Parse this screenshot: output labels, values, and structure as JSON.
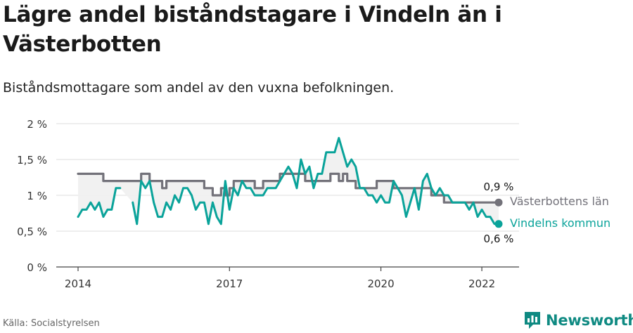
{
  "title": "Lägre andel biståndstagare i Vindeln än i Västerbotten",
  "subtitle": "Biståndsmottagare som andel av den vuxna befolkningen.",
  "source": "Källa: Socialstyrelsen",
  "brand": "Newsworthy",
  "colors": {
    "vasterbotten": "#73727a",
    "vindeln": "#0aa39a",
    "brand": "#0f8a82",
    "grid": "#dcdcdc",
    "axis": "#444444",
    "fill": "#efefef"
  },
  "chart_data": {
    "type": "line",
    "x_tick_labels": [
      "2014",
      "2017",
      "2020",
      "2022"
    ],
    "y_ticks": [
      0,
      0.5,
      1,
      1.5,
      2
    ],
    "y_tick_labels": [
      "0 %",
      "0,5 %",
      "1 %",
      "1,5 %",
      "2 %"
    ],
    "ylim": [
      0,
      2
    ],
    "xlim": [
      "2014-01",
      "2022-05"
    ],
    "ylabel": "",
    "xlabel": "",
    "grid": true,
    "series": [
      {
        "name": "Västerbottens län",
        "end_label": "0,9 %",
        "color": "#73727a",
        "values": [
          {
            "x": "2014-01",
            "y": 1.3
          },
          {
            "x": "2014-06",
            "y": 1.3
          },
          {
            "x": "2014-07",
            "y": 1.2
          },
          {
            "x": "2015-03",
            "y": 1.2
          },
          {
            "x": "2015-04",
            "y": 1.3
          },
          {
            "x": "2015-05",
            "y": 1.3
          },
          {
            "x": "2015-06",
            "y": 1.2
          },
          {
            "x": "2015-07",
            "y": 1.2
          },
          {
            "x": "2015-08",
            "y": 1.2
          },
          {
            "x": "2015-09",
            "y": 1.1
          },
          {
            "x": "2015-10",
            "y": 1.2
          },
          {
            "x": "2016-06",
            "y": 1.2
          },
          {
            "x": "2016-07",
            "y": 1.1
          },
          {
            "x": "2016-08",
            "y": 1.1
          },
          {
            "x": "2016-09",
            "y": 1.0
          },
          {
            "x": "2016-10",
            "y": 1.0
          },
          {
            "x": "2016-11",
            "y": 1.1
          },
          {
            "x": "2016-12",
            "y": 1.0
          },
          {
            "x": "2017-01",
            "y": 1.1
          },
          {
            "x": "2017-02",
            "y": 1.2
          },
          {
            "x": "2017-06",
            "y": 1.2
          },
          {
            "x": "2017-07",
            "y": 1.1
          },
          {
            "x": "2017-08",
            "y": 1.1
          },
          {
            "x": "2017-09",
            "y": 1.2
          },
          {
            "x": "2017-12",
            "y": 1.2
          },
          {
            "x": "2018-01",
            "y": 1.3
          },
          {
            "x": "2018-06",
            "y": 1.3
          },
          {
            "x": "2018-07",
            "y": 1.2
          },
          {
            "x": "2018-12",
            "y": 1.2
          },
          {
            "x": "2019-01",
            "y": 1.3
          },
          {
            "x": "2019-02",
            "y": 1.3
          },
          {
            "x": "2019-03",
            "y": 1.2
          },
          {
            "x": "2019-04",
            "y": 1.3
          },
          {
            "x": "2019-05",
            "y": 1.2
          },
          {
            "x": "2019-06",
            "y": 1.2
          },
          {
            "x": "2019-07",
            "y": 1.1
          },
          {
            "x": "2019-11",
            "y": 1.1
          },
          {
            "x": "2019-12",
            "y": 1.2
          },
          {
            "x": "2020-03",
            "y": 1.2
          },
          {
            "x": "2020-04",
            "y": 1.1
          },
          {
            "x": "2020-12",
            "y": 1.1
          },
          {
            "x": "2021-01",
            "y": 1.0
          },
          {
            "x": "2021-02",
            "y": 1.0
          },
          {
            "x": "2021-03",
            "y": 1.0
          },
          {
            "x": "2021-04",
            "y": 0.9
          },
          {
            "x": "2022-05",
            "y": 0.9
          }
        ]
      },
      {
        "name": "Vindelns kommun",
        "end_label": "0,6 %",
        "color": "#0aa39a",
        "values": [
          {
            "x": "2014-01",
            "y": 0.7
          },
          {
            "x": "2014-02",
            "y": 0.8
          },
          {
            "x": "2014-03",
            "y": 0.8
          },
          {
            "x": "2014-04",
            "y": 0.9
          },
          {
            "x": "2014-05",
            "y": 0.8
          },
          {
            "x": "2014-06",
            "y": 0.9
          },
          {
            "x": "2014-07",
            "y": 0.7
          },
          {
            "x": "2014-08",
            "y": 0.8
          },
          {
            "x": "2014-09",
            "y": 0.8
          },
          {
            "x": "2014-10",
            "y": 1.1
          },
          {
            "x": "2014-11",
            "y": 1.1
          },
          {
            "x": "2015-02",
            "y": 0.9,
            "gap_before": true
          },
          {
            "x": "2015-03",
            "y": 0.6
          },
          {
            "x": "2015-04",
            "y": 1.2
          },
          {
            "x": "2015-05",
            "y": 1.1
          },
          {
            "x": "2015-06",
            "y": 1.2
          },
          {
            "x": "2015-07",
            "y": 0.9
          },
          {
            "x": "2015-08",
            "y": 0.7
          },
          {
            "x": "2015-09",
            "y": 0.7
          },
          {
            "x": "2015-10",
            "y": 0.9
          },
          {
            "x": "2015-11",
            "y": 0.8
          },
          {
            "x": "2015-12",
            "y": 1.0
          },
          {
            "x": "2016-01",
            "y": 0.9
          },
          {
            "x": "2016-02",
            "y": 1.1
          },
          {
            "x": "2016-03",
            "y": 1.1
          },
          {
            "x": "2016-04",
            "y": 1.0
          },
          {
            "x": "2016-05",
            "y": 0.8
          },
          {
            "x": "2016-06",
            "y": 0.9
          },
          {
            "x": "2016-07",
            "y": 0.9
          },
          {
            "x": "2016-08",
            "y": 0.6
          },
          {
            "x": "2016-09",
            "y": 0.9
          },
          {
            "x": "2016-10",
            "y": 0.7
          },
          {
            "x": "2016-11",
            "y": 0.6
          },
          {
            "x": "2016-12",
            "y": 1.2
          },
          {
            "x": "2017-01",
            "y": 0.8
          },
          {
            "x": "2017-02",
            "y": 1.1
          },
          {
            "x": "2017-03",
            "y": 1.0
          },
          {
            "x": "2017-04",
            "y": 1.2
          },
          {
            "x": "2017-05",
            "y": 1.1
          },
          {
            "x": "2017-06",
            "y": 1.1
          },
          {
            "x": "2017-07",
            "y": 1.0
          },
          {
            "x": "2017-08",
            "y": 1.0
          },
          {
            "x": "2017-09",
            "y": 1.0
          },
          {
            "x": "2017-10",
            "y": 1.1
          },
          {
            "x": "2017-11",
            "y": 1.1
          },
          {
            "x": "2017-12",
            "y": 1.1
          },
          {
            "x": "2018-01",
            "y": 1.2
          },
          {
            "x": "2018-02",
            "y": 1.3
          },
          {
            "x": "2018-03",
            "y": 1.4
          },
          {
            "x": "2018-04",
            "y": 1.3
          },
          {
            "x": "2018-05",
            "y": 1.1
          },
          {
            "x": "2018-06",
            "y": 1.5
          },
          {
            "x": "2018-07",
            "y": 1.3
          },
          {
            "x": "2018-08",
            "y": 1.4
          },
          {
            "x": "2018-09",
            "y": 1.1
          },
          {
            "x": "2018-10",
            "y": 1.3
          },
          {
            "x": "2018-11",
            "y": 1.3
          },
          {
            "x": "2018-12",
            "y": 1.6
          },
          {
            "x": "2019-01",
            "y": 1.6
          },
          {
            "x": "2019-02",
            "y": 1.6
          },
          {
            "x": "2019-03",
            "y": 1.8
          },
          {
            "x": "2019-04",
            "y": 1.6
          },
          {
            "x": "2019-05",
            "y": 1.4
          },
          {
            "x": "2019-06",
            "y": 1.5
          },
          {
            "x": "2019-07",
            "y": 1.4
          },
          {
            "x": "2019-08",
            "y": 1.1
          },
          {
            "x": "2019-09",
            "y": 1.1
          },
          {
            "x": "2019-10",
            "y": 1.0
          },
          {
            "x": "2019-11",
            "y": 1.0
          },
          {
            "x": "2019-12",
            "y": 0.9
          },
          {
            "x": "2020-01",
            "y": 1.0
          },
          {
            "x": "2020-02",
            "y": 0.9
          },
          {
            "x": "2020-03",
            "y": 0.9
          },
          {
            "x": "2020-04",
            "y": 1.2
          },
          {
            "x": "2020-05",
            "y": 1.1
          },
          {
            "x": "2020-06",
            "y": 1.0
          },
          {
            "x": "2020-07",
            "y": 0.7
          },
          {
            "x": "2020-08",
            "y": 0.9
          },
          {
            "x": "2020-09",
            "y": 1.1
          },
          {
            "x": "2020-10",
            "y": 0.8
          },
          {
            "x": "2020-11",
            "y": 1.2
          },
          {
            "x": "2020-12",
            "y": 1.3
          },
          {
            "x": "2021-01",
            "y": 1.1
          },
          {
            "x": "2021-02",
            "y": 1.0
          },
          {
            "x": "2021-03",
            "y": 1.1
          },
          {
            "x": "2021-04",
            "y": 1.0
          },
          {
            "x": "2021-05",
            "y": 1.0
          },
          {
            "x": "2021-06",
            "y": 0.9
          },
          {
            "x": "2021-07",
            "y": 0.9
          },
          {
            "x": "2021-08",
            "y": 0.9
          },
          {
            "x": "2021-09",
            "y": 0.9
          },
          {
            "x": "2021-10",
            "y": 0.8
          },
          {
            "x": "2021-11",
            "y": 0.9
          },
          {
            "x": "2021-12",
            "y": 0.7
          },
          {
            "x": "2022-01",
            "y": 0.8
          },
          {
            "x": "2022-02",
            "y": 0.7
          },
          {
            "x": "2022-03",
            "y": 0.7
          },
          {
            "x": "2022-04",
            "y": 0.6
          },
          {
            "x": "2022-05",
            "y": 0.6
          }
        ]
      }
    ]
  }
}
